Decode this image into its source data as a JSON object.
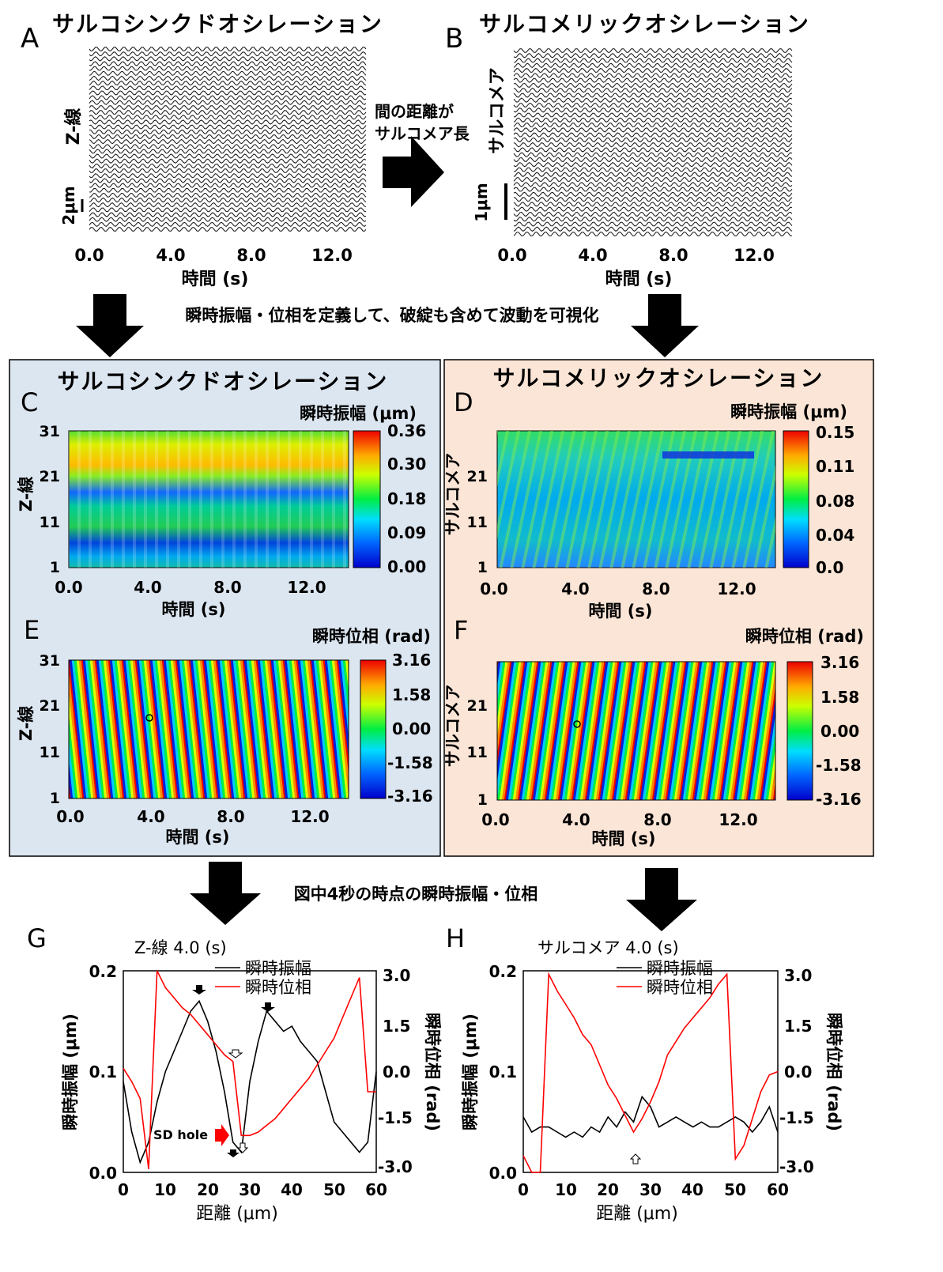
{
  "panels": {
    "A": {
      "letter": "A",
      "title": "サルコシンクドオシレーション",
      "ylabel": "Z-線",
      "scalebar": "2μm",
      "xticks": [
        "0.0",
        "4.0",
        "8.0",
        "12.0"
      ],
      "xlabel": "時間 (s)"
    },
    "B": {
      "letter": "B",
      "title": "サルコメリックオシレーション",
      "ylabel": "サルコメア",
      "scalebar": "1μm",
      "xticks": [
        "0.0",
        "4.0",
        "8.0",
        "12.0"
      ],
      "xlabel": "時間 (s)"
    },
    "C": {
      "letter": "C",
      "box_title": "サルコシンクドオシレーション",
      "cbar_title": "瞬時振幅 (μm)",
      "yticks": [
        "31",
        "21",
        "11",
        "1"
      ],
      "ylabel": "Z-線",
      "xticks": [
        "0.0",
        "4.0",
        "8.0",
        "12.0"
      ],
      "xlabel": "時間 (s)",
      "cbar_ticks": [
        "0.36",
        "0.30",
        "0.18",
        "0.09",
        "0.00"
      ]
    },
    "D": {
      "letter": "D",
      "box_title": "サルコメリックオシレーション",
      "cbar_title": "瞬時振幅 (μm)",
      "yticks": [
        "21",
        "11",
        "1"
      ],
      "ylabel": "サルコメア",
      "xticks": [
        "0.0",
        "4.0",
        "8.0",
        "12.0"
      ],
      "xlabel": "時間 (s)",
      "cbar_ticks": [
        "0.15",
        "0.11",
        "0.08",
        "0.04",
        "0.0"
      ]
    },
    "E": {
      "letter": "E",
      "cbar_title": "瞬時位相 (rad)",
      "yticks": [
        "31",
        "21",
        "11",
        "1"
      ],
      "ylabel": "Z-線",
      "xticks": [
        "0.0",
        "4.0",
        "8.0",
        "12.0"
      ],
      "xlabel": "時間 (s)",
      "cbar_ticks": [
        "3.16",
        "1.58",
        "0.00",
        "-1.58",
        "-3.16"
      ]
    },
    "F": {
      "letter": "F",
      "cbar_title": "瞬時位相 (rad)",
      "yticks": [
        "21",
        "11",
        "1"
      ],
      "ylabel": "サルコメア",
      "xticks": [
        "0.0",
        "4.0",
        "8.0",
        "12.0"
      ],
      "xlabel": "時間 (s)",
      "cbar_ticks": [
        "3.16",
        "1.58",
        "0.00",
        "-1.58",
        "-3.16"
      ]
    },
    "G": {
      "letter": "G",
      "title": "Z-線 4.0 (s)",
      "legend_amp": "瞬時振幅",
      "legend_phase": "瞬時位相",
      "ylabel_left": "瞬時振幅 (μm)",
      "ylabel_right": "瞬時位相 (rad)",
      "yticks_left": [
        "0.2",
        "0.1",
        "0.0"
      ],
      "yticks_right": [
        "3.0",
        "1.5",
        "0.0",
        "-1.5",
        "-3.0"
      ],
      "xticks": [
        "0",
        "10",
        "20",
        "30",
        "40",
        "50",
        "60"
      ],
      "xlabel": "距離 (μm)",
      "annotation": "SD hole"
    },
    "H": {
      "letter": "H",
      "title": "サルコメア 4.0 (s)",
      "legend_amp": "瞬時振幅",
      "legend_phase": "瞬時位相",
      "ylabel_left": "瞬時振幅 (μm)",
      "ylabel_right": "瞬時位相 (rad)",
      "yticks_left": [
        "0.2",
        "0.1",
        "0.0"
      ],
      "yticks_right": [
        "3.0",
        "1.5",
        "0.0",
        "-1.5",
        "-3.0"
      ],
      "xticks": [
        "0",
        "10",
        "20",
        "30",
        "40",
        "50",
        "60"
      ],
      "xlabel": "距離 (μm)"
    }
  },
  "arrows": {
    "ab_text1": "間の距離が",
    "ab_text2": "サルコメア長",
    "row1_text": "瞬時振幅・位相を定義して、破綻も含めて波動を可視化",
    "row3_text": "図中4秒の時点の瞬時振幅・位相"
  },
  "colors": {
    "panel_left_bg": "#dce6f1",
    "panel_right_bg": "#fbe5d6",
    "amplitude": "#000000",
    "phase": "#ff0000"
  },
  "chart_data": [
    {
      "id": "G",
      "type": "line",
      "x_unit": "μm",
      "xlim": [
        0,
        60
      ],
      "ylim_left": [
        0,
        0.2
      ],
      "ylim_right": [
        -3.0,
        3.0
      ],
      "series": [
        {
          "name": "瞬時振幅",
          "axis": "left",
          "x": [
            0,
            2,
            4,
            6,
            8,
            10,
            12,
            14,
            16,
            18,
            20,
            22,
            24,
            26,
            28,
            30,
            32,
            34,
            36,
            38,
            40,
            42,
            44,
            46,
            48,
            50,
            52,
            54,
            56,
            58,
            60
          ],
          "y": [
            0.09,
            0.04,
            0.01,
            0.03,
            0.07,
            0.1,
            0.12,
            0.14,
            0.16,
            0.17,
            0.15,
            0.12,
            0.08,
            0.03,
            0.02,
            0.09,
            0.13,
            0.16,
            0.15,
            0.14,
            0.145,
            0.13,
            0.12,
            0.11,
            0.08,
            0.05,
            0.04,
            0.03,
            0.02,
            0.03,
            0.1
          ]
        },
        {
          "name": "瞬時位相",
          "axis": "right",
          "x": [
            0,
            2,
            4,
            6,
            8,
            10,
            12,
            14,
            16,
            18,
            20,
            22,
            24,
            26,
            28,
            30,
            32,
            34,
            36,
            38,
            40,
            42,
            44,
            46,
            48,
            50,
            52,
            54,
            56,
            58,
            60
          ],
          "y": [
            0.1,
            -0.3,
            -0.8,
            -2.9,
            3.0,
            2.5,
            2.2,
            1.9,
            1.7,
            1.4,
            1.1,
            0.8,
            0.5,
            0.3,
            -1.9,
            -1.9,
            -1.8,
            -1.6,
            -1.4,
            -1.1,
            -0.8,
            -0.5,
            -0.2,
            0.2,
            0.6,
            1.0,
            1.6,
            2.2,
            2.8,
            -0.6,
            -0.6
          ]
        }
      ]
    },
    {
      "id": "H",
      "type": "line",
      "x_unit": "μm",
      "xlim": [
        0,
        60
      ],
      "ylim_left": [
        0,
        0.2
      ],
      "ylim_right": [
        -3.0,
        3.0
      ],
      "series": [
        {
          "name": "瞬時振幅",
          "axis": "left",
          "x": [
            0,
            2,
            4,
            6,
            8,
            10,
            12,
            14,
            16,
            18,
            20,
            22,
            24,
            26,
            28,
            30,
            32,
            34,
            36,
            38,
            40,
            42,
            44,
            46,
            48,
            50,
            52,
            54,
            56,
            58,
            60
          ],
          "y": [
            0.055,
            0.04,
            0.045,
            0.045,
            0.04,
            0.035,
            0.04,
            0.035,
            0.045,
            0.04,
            0.055,
            0.045,
            0.06,
            0.05,
            0.075,
            0.065,
            0.045,
            0.05,
            0.055,
            0.05,
            0.045,
            0.05,
            0.045,
            0.045,
            0.05,
            0.055,
            0.05,
            0.04,
            0.05,
            0.065,
            0.04
          ]
        },
        {
          "name": "瞬時位相",
          "axis": "right",
          "x": [
            0,
            2,
            4,
            6,
            8,
            10,
            12,
            14,
            16,
            18,
            20,
            22,
            24,
            26,
            28,
            30,
            32,
            34,
            36,
            38,
            40,
            42,
            44,
            46,
            48,
            50,
            52,
            54,
            56,
            58,
            60
          ],
          "y": [
            -2.5,
            -3.0,
            -3.0,
            2.9,
            2.4,
            2.0,
            1.6,
            1.1,
            0.8,
            0.2,
            -0.4,
            -0.8,
            -1.3,
            -1.8,
            -1.4,
            -0.9,
            -0.3,
            0.5,
            0.9,
            1.3,
            1.6,
            1.9,
            2.2,
            2.6,
            2.9,
            -2.6,
            -2.2,
            -1.4,
            -0.6,
            -0.1,
            0.0
          ]
        }
      ]
    }
  ]
}
